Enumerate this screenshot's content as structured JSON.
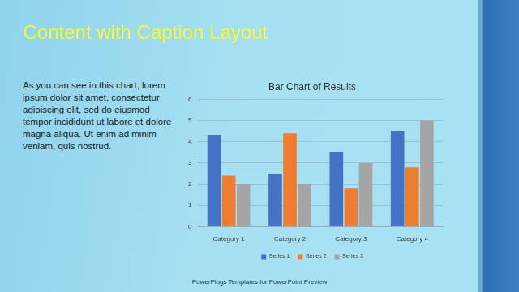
{
  "slide": {
    "title": "Content with Caption Layout",
    "caption": "As you can see in this chart, lorem ipsum dolor sit amet, consectetur adipiscing elit, sed do eiusmod tempor incididunt ut labore et dolore magna aliqua. Ut enim ad minim veniam, quis nostrud.",
    "footer": "PowerPlugs Templates for PowerPoint Preview"
  },
  "chart_data": {
    "type": "bar",
    "title": "Bar Chart of Results",
    "categories": [
      "Category 1",
      "Category 2",
      "Category 3",
      "Category 4"
    ],
    "series": [
      {
        "name": "Series 1",
        "color": "#4472c4",
        "values": [
          4.3,
          2.5,
          3.5,
          4.5
        ]
      },
      {
        "name": "Series 2",
        "color": "#ed7d31",
        "values": [
          2.4,
          4.4,
          1.8,
          2.8
        ]
      },
      {
        "name": "Series 3",
        "color": "#a5a5a5",
        "values": [
          2,
          2,
          3,
          5
        ]
      }
    ],
    "ylim": [
      0,
      6
    ],
    "yticks": [
      0,
      1,
      2,
      3,
      4,
      5,
      6
    ],
    "grid": true,
    "legend": "bottom"
  }
}
